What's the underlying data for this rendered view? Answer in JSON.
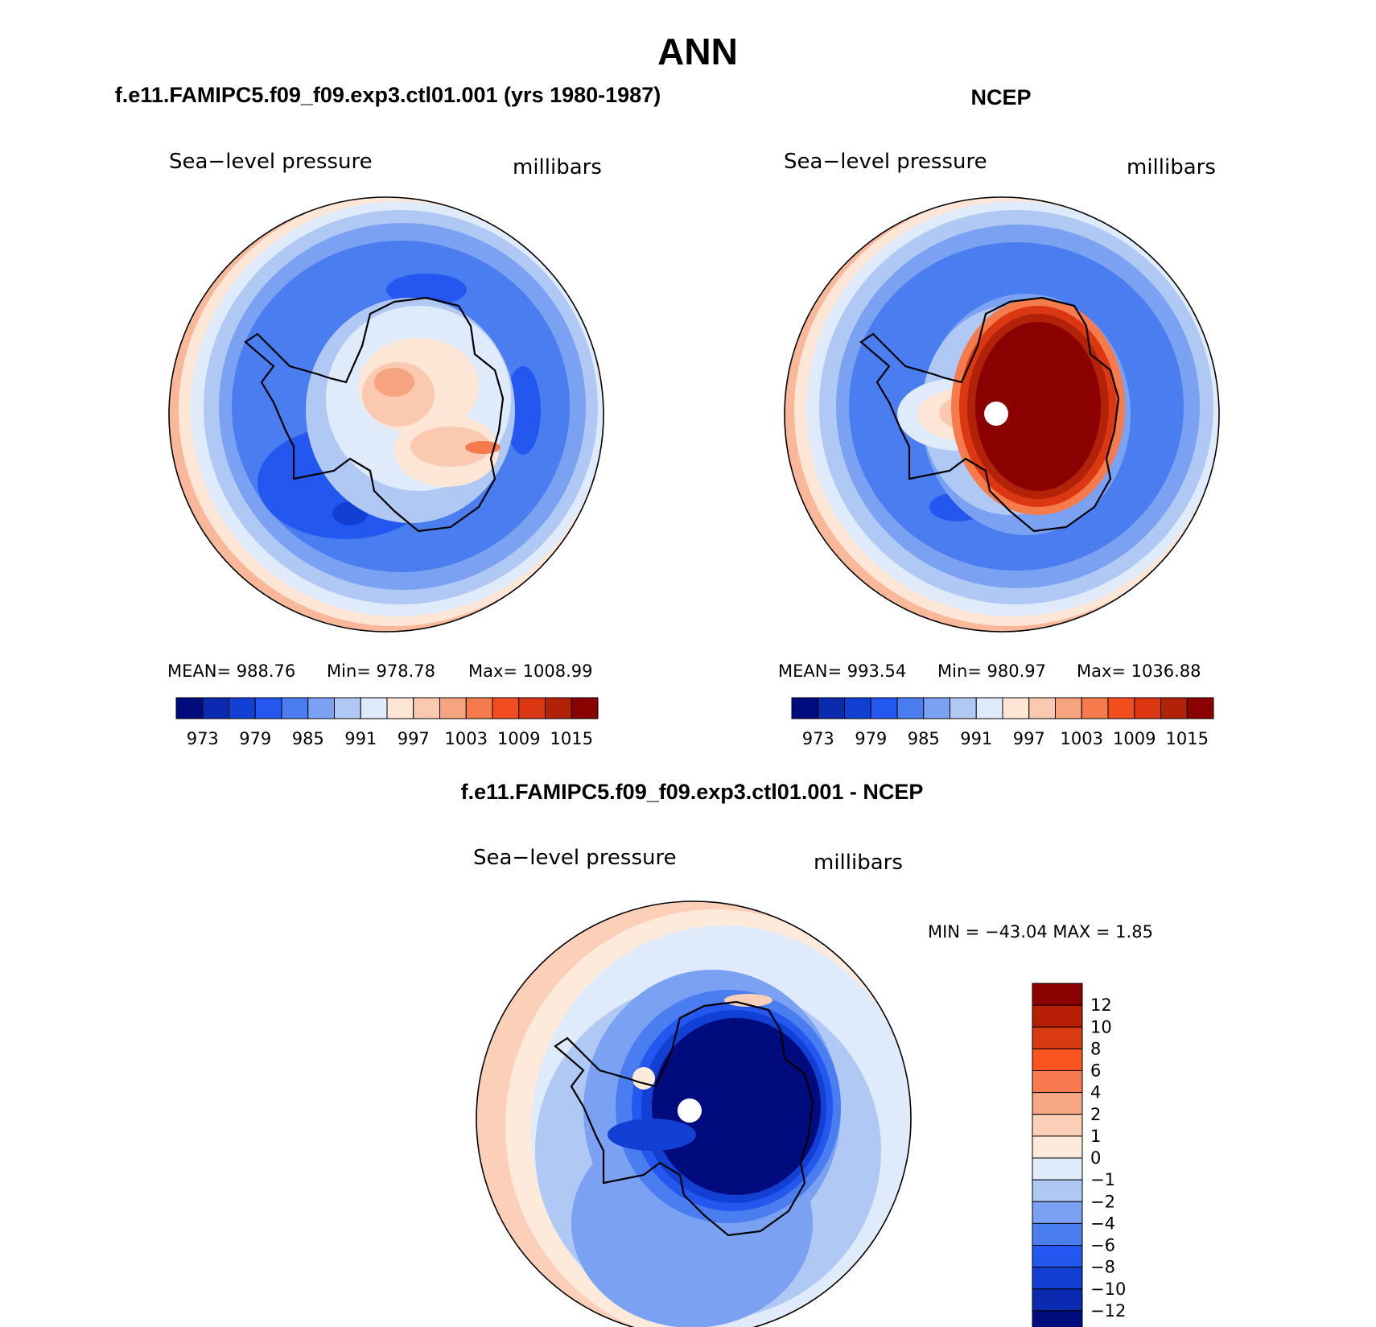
{
  "figure": {
    "title": "ANN",
    "bottom_title": "f.e11.FAMIPC5.f09_f09.exp3.ctl01.001 - NCEP"
  },
  "chart_data": [
    {
      "type": "heatmap",
      "title": "f.e11.FAMIPC5.f09_f09.exp3.ctl01.001 (yrs 1980-1987)",
      "variable": "Sea−level pressure",
      "units": "millibars",
      "stats": {
        "mean": "MEAN=  988.76",
        "min": "Min=  978.78",
        "max": "Max=  1008.99"
      },
      "colorbar": {
        "orientation": "horizontal",
        "colors": [
          "#000c7d",
          "#0a2aaf",
          "#1240d4",
          "#2457ef",
          "#4a7ef0",
          "#7ba2f2",
          "#b0c8f4",
          "#dfeafa",
          "#fde6d6",
          "#fac9b0",
          "#f6a380",
          "#f57b4d",
          "#f14d1e",
          "#db3712",
          "#b12208",
          "#8b0000"
        ],
        "ticks": [
          "973",
          "979",
          "985",
          "991",
          "997",
          "1003",
          "1009",
          "1015"
        ]
      }
    },
    {
      "type": "heatmap",
      "title": "NCEP",
      "variable": "Sea−level pressure",
      "units": "millibars",
      "stats": {
        "mean": "MEAN=  993.54",
        "min": "Min=  980.97",
        "max": "Max=  1036.88"
      },
      "colorbar": {
        "orientation": "horizontal",
        "colors": [
          "#000c7d",
          "#0a2aaf",
          "#1240d4",
          "#2457ef",
          "#4a7ef0",
          "#7ba2f2",
          "#b0c8f4",
          "#dfeafa",
          "#fde6d6",
          "#fac9b0",
          "#f6a380",
          "#f57b4d",
          "#f14d1e",
          "#db3712",
          "#b12208",
          "#8b0000"
        ],
        "ticks": [
          "973",
          "979",
          "985",
          "991",
          "997",
          "1003",
          "1009",
          "1015"
        ]
      }
    },
    {
      "type": "heatmap",
      "title": "f.e11.FAMIPC5.f09_f09.exp3.ctl01.001 - NCEP",
      "variable": "Sea−level pressure",
      "units": "millibars",
      "stats": {
        "minmax": "MIN = −43.04  MAX =    1.85"
      },
      "colorbar": {
        "orientation": "vertical",
        "colors": [
          "#8b0000",
          "#b81e05",
          "#da3a12",
          "#fa5521",
          "#f97a4e",
          "#f7a783",
          "#fcd0b8",
          "#fdeadb",
          "#dfeafa",
          "#b0c8f4",
          "#7ba2f2",
          "#4a7ef0",
          "#2457ef",
          "#1240d4",
          "#0a2aaf",
          "#000c7d"
        ],
        "ticks": [
          "12",
          "10",
          "8",
          "6",
          "4",
          "2",
          "1",
          "0",
          "−1",
          "−2",
          "−4",
          "−6",
          "−8",
          "−10",
          "−12"
        ]
      }
    }
  ]
}
